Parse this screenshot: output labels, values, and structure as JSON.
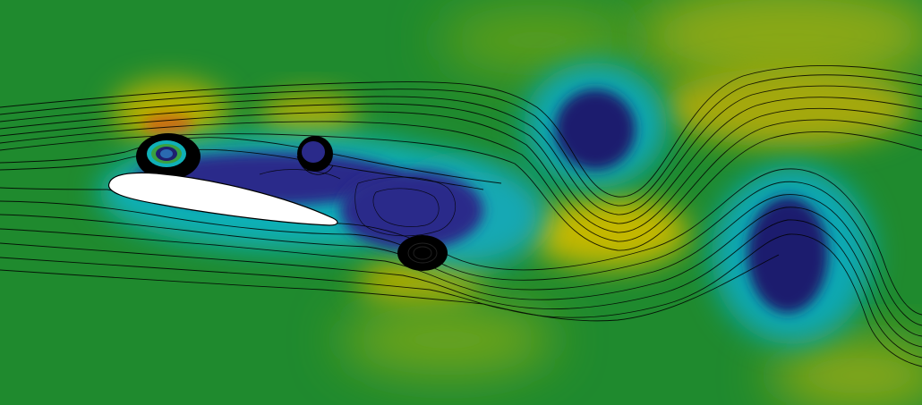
{
  "visualization": {
    "kind": "airfoil-flow-streamlines",
    "colors": {
      "background_green": "#1f8a2e",
      "mid_green": "#3a9a25",
      "yellow": "#b8b000",
      "bright_yellow": "#d0c400",
      "orange": "#d06a10",
      "cyan": "#10b0b8",
      "teal": "#1a9a8a",
      "deep_blue": "#2a2a8a",
      "navy": "#1e1e6e",
      "airfoil_fill": "#ffffff",
      "streamline": "#000000"
    }
  }
}
